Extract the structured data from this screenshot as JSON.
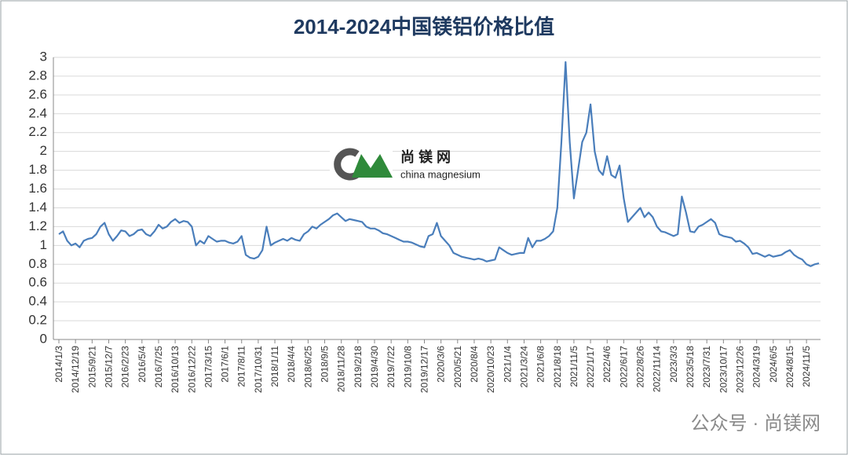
{
  "chart_data": {
    "type": "line",
    "title": "2014-2024中国镁铝价格比值",
    "logo": {
      "name": "尚 镁 网",
      "subtitle": "china magnesium"
    },
    "watermark": "公众号 · 尚镁网",
    "color": "#4a7ebb",
    "grid": true,
    "ylim": [
      0,
      3
    ],
    "yticks": [
      0,
      0.2,
      0.4,
      0.6,
      0.8,
      1,
      1.2,
      1.4,
      1.6,
      1.8,
      2,
      2.2,
      2.4,
      2.6,
      2.8,
      3
    ],
    "categories": [
      "2014/1/3",
      null,
      null,
      null,
      "2014/12/19",
      null,
      null,
      null,
      "2015/9/21",
      null,
      null,
      null,
      "2015/12/7",
      null,
      null,
      null,
      "2016/2/23",
      null,
      null,
      null,
      "2016/5/4",
      null,
      null,
      null,
      "2016/7/25",
      null,
      null,
      null,
      "2016/10/13",
      null,
      null,
      null,
      "2016/12/22",
      null,
      null,
      null,
      "2017/3/15",
      null,
      null,
      null,
      "2017/6/1",
      null,
      null,
      null,
      "2017/8/11",
      null,
      null,
      null,
      "2017/10/31",
      null,
      null,
      null,
      "2018/1/11",
      null,
      null,
      null,
      "2018/4/4",
      null,
      null,
      null,
      "2018/6/25",
      null,
      null,
      null,
      "2018/9/5",
      null,
      null,
      null,
      "2018/11/28",
      null,
      null,
      null,
      "2019/2/18",
      null,
      null,
      null,
      "2019/4/30",
      null,
      null,
      null,
      "2019/7/22",
      null,
      null,
      null,
      "2019/10/8",
      null,
      null,
      null,
      "2019/12/17",
      null,
      null,
      null,
      "2020/3/6",
      null,
      null,
      null,
      "2020/5/21",
      null,
      null,
      null,
      "2020/8/4",
      null,
      null,
      null,
      "2020/10/23",
      null,
      null,
      null,
      "2021/1/4",
      null,
      null,
      null,
      "2021/3/24",
      null,
      null,
      null,
      "2021/6/8",
      null,
      null,
      null,
      "2021/8/18",
      null,
      null,
      null,
      "2021/11/5",
      null,
      null,
      null,
      "2022/1/17",
      null,
      null,
      null,
      "2022/4/6",
      null,
      null,
      null,
      "2022/6/17",
      null,
      null,
      null,
      "2022/8/26",
      null,
      null,
      null,
      "2022/11/14",
      null,
      null,
      null,
      "2023/3/3",
      null,
      null,
      null,
      "2023/5/18",
      null,
      null,
      null,
      "2023/7/31",
      null,
      null,
      null,
      "2023/10/17",
      null,
      null,
      null,
      "2023/12/26",
      null,
      null,
      null,
      "2024/3/19",
      null,
      null,
      null,
      "2024/6/5",
      null,
      null,
      null,
      "2024/8/15",
      null,
      null,
      null,
      "2024/11/5",
      null,
      null,
      null
    ],
    "values": [
      1.12,
      1.15,
      1.05,
      1.0,
      1.02,
      0.98,
      1.05,
      1.07,
      1.08,
      1.12,
      1.2,
      1.24,
      1.12,
      1.05,
      1.1,
      1.16,
      1.15,
      1.1,
      1.12,
      1.16,
      1.17,
      1.12,
      1.1,
      1.15,
      1.22,
      1.18,
      1.2,
      1.25,
      1.28,
      1.24,
      1.26,
      1.25,
      1.2,
      1.0,
      1.05,
      1.02,
      1.1,
      1.07,
      1.04,
      1.05,
      1.05,
      1.03,
      1.02,
      1.04,
      1.1,
      0.9,
      0.87,
      0.86,
      0.88,
      0.95,
      1.2,
      1.0,
      1.03,
      1.05,
      1.07,
      1.05,
      1.08,
      1.06,
      1.05,
      1.12,
      1.15,
      1.2,
      1.18,
      1.22,
      1.25,
      1.28,
      1.32,
      1.34,
      1.3,
      1.26,
      1.28,
      1.27,
      1.26,
      1.25,
      1.2,
      1.18,
      1.18,
      1.16,
      1.13,
      1.12,
      1.1,
      1.08,
      1.06,
      1.04,
      1.04,
      1.03,
      1.01,
      0.99,
      0.98,
      1.1,
      1.12,
      1.24,
      1.1,
      1.05,
      1.0,
      0.92,
      0.9,
      0.88,
      0.87,
      0.86,
      0.85,
      0.86,
      0.85,
      0.83,
      0.84,
      0.85,
      0.98,
      0.95,
      0.92,
      0.9,
      0.91,
      0.92,
      0.92,
      1.08,
      0.98,
      1.05,
      1.05,
      1.07,
      1.1,
      1.15,
      1.4,
      2.1,
      2.95,
      2.1,
      1.5,
      1.8,
      2.1,
      2.2,
      2.5,
      2.0,
      1.8,
      1.75,
      1.95,
      1.75,
      1.72,
      1.85,
      1.5,
      1.25,
      1.3,
      1.35,
      1.4,
      1.3,
      1.35,
      1.3,
      1.2,
      1.15,
      1.14,
      1.12,
      1.1,
      1.12,
      1.52,
      1.35,
      1.15,
      1.14,
      1.2,
      1.22,
      1.25,
      1.28,
      1.24,
      1.12,
      1.1,
      1.09,
      1.08,
      1.04,
      1.05,
      1.02,
      0.98,
      0.91,
      0.92,
      0.9,
      0.88,
      0.9,
      0.88,
      0.89,
      0.9,
      0.93,
      0.95,
      0.9,
      0.87,
      0.85,
      0.8,
      0.78,
      0.8,
      0.81
    ]
  }
}
